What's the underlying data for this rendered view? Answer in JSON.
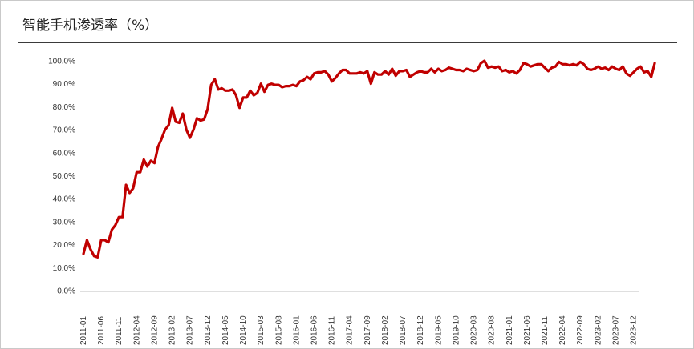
{
  "title": "智能手机渗透率（%）",
  "chart_data": {
    "type": "line",
    "title": "智能手机渗透率（%）",
    "xlabel": "",
    "ylabel": "",
    "ylim": [
      0,
      100
    ],
    "yticks": [
      "0.0%",
      "10.0%",
      "20.0%",
      "30.0%",
      "40.0%",
      "50.0%",
      "60.0%",
      "70.0%",
      "80.0%",
      "90.0%",
      "100.0%"
    ],
    "xticks": [
      "2011-01",
      "2011-06",
      "2011-11",
      "2012-04",
      "2012-09",
      "2013-02",
      "2013-07",
      "2013-12",
      "2014-05",
      "2014-10",
      "2015-03",
      "2015-08",
      "2016-01",
      "2016-06",
      "2016-11",
      "2017-04",
      "2017-09",
      "2018-02",
      "2018-07",
      "2018-12",
      "2019-05",
      "2019-10",
      "2020-03",
      "2020-08",
      "2021-01",
      "2021-06",
      "2021-11",
      "2022-04",
      "2022-09",
      "2023-02",
      "2023-07",
      "2023-12"
    ],
    "grid": false,
    "legend": "none",
    "color": "#c00000",
    "x_start": "2011-01",
    "x_end": "2024-01",
    "series": [
      {
        "values": [
          16.0,
          22.0,
          18.0,
          15.0,
          14.5,
          22.0,
          22.0,
          21.0,
          26.5,
          28.5,
          32.0,
          32.0,
          46.0,
          42.5,
          44.5,
          51.5,
          51.5,
          57.0,
          54.0,
          56.5,
          55.5,
          62.5,
          66.0,
          70.0,
          72.0,
          79.5,
          73.5,
          73.0,
          77.0,
          70.0,
          66.5,
          70.0,
          75.0,
          74.0,
          74.5,
          79.0,
          89.5,
          92.0,
          87.5,
          88.0,
          87.0,
          87.0,
          87.5,
          85.0,
          79.5,
          84.0,
          84.0,
          87.0,
          85.0,
          86.0,
          90.0,
          86.5,
          89.5,
          90.0,
          89.5,
          89.5,
          88.5,
          89.0,
          89.0,
          89.5,
          89.0,
          91.0,
          91.5,
          93.0,
          92.0,
          94.5,
          95.0,
          95.0,
          95.5,
          94.0,
          91.0,
          92.5,
          94.5,
          96.0,
          96.0,
          94.5,
          94.5,
          94.5,
          95.0,
          94.5,
          95.5,
          90.0,
          95.0,
          94.0,
          94.0,
          95.5,
          94.0,
          96.5,
          93.5,
          95.5,
          95.5,
          96.0,
          93.0,
          94.0,
          95.0,
          95.5,
          95.0,
          95.0,
          96.5,
          95.0,
          96.5,
          95.5,
          96.0,
          97.0,
          96.5,
          96.0,
          96.0,
          95.5,
          96.5,
          96.0,
          95.5,
          96.0,
          99.0,
          100.0,
          97.0,
          97.5,
          97.0,
          97.5,
          95.5,
          96.0,
          95.0,
          95.5,
          94.5,
          96.0,
          99.0,
          98.5,
          97.5,
          98.0,
          98.5,
          98.5,
          97.0,
          95.5,
          97.0,
          97.5,
          99.5,
          98.5,
          98.5,
          98.0,
          98.5,
          98.0,
          99.5,
          98.5,
          96.5,
          96.0,
          96.5,
          97.5,
          96.5,
          97.0,
          96.0,
          97.5,
          96.5,
          96.0,
          97.5,
          94.5,
          93.5,
          95.0,
          96.5,
          97.5,
          95.0,
          95.5,
          93.0,
          99.0
        ]
      }
    ]
  }
}
